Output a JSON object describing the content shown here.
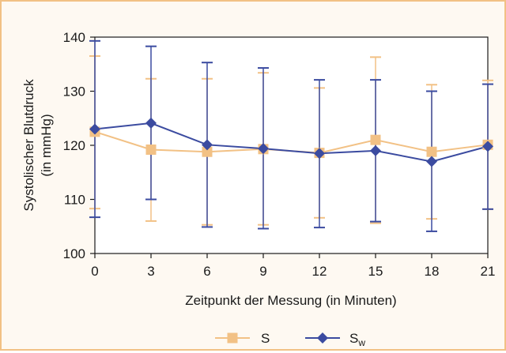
{
  "chart_data": {
    "type": "line",
    "title": "",
    "xlabel": "Zeitpunkt der Messung (in Minuten)",
    "ylabel_lines": [
      "Systolischer Blutdruck",
      "(in mmHg)"
    ],
    "x": [
      0,
      3,
      6,
      9,
      12,
      15,
      18,
      21
    ],
    "x_tick_labels": [
      "0",
      "3",
      "6",
      "9",
      "12",
      "15",
      "18",
      "21"
    ],
    "y_tick_labels": [
      "100",
      "110",
      "120",
      "130",
      "140"
    ],
    "y_ticks": [
      100,
      110,
      120,
      130,
      140
    ],
    "xlim": [
      0,
      21
    ],
    "ylim": [
      100,
      140
    ],
    "grid": false,
    "legend_position": "bottom",
    "series": [
      {
        "name": "S",
        "color": "#f2c185",
        "marker": "square",
        "values": [
          122.5,
          119.2,
          118.8,
          119.3,
          118.6,
          121.0,
          118.8,
          120.1
        ],
        "err_low": [
          108.3,
          106.0,
          105.3,
          105.3,
          106.6,
          105.6,
          106.4,
          108.2
        ],
        "err_high": [
          136.5,
          132.3,
          132.3,
          133.4,
          130.6,
          136.3,
          131.2,
          132.0
        ]
      },
      {
        "name": "S",
        "name_subscript": "w",
        "color": "#3b4ba0",
        "marker": "diamond",
        "values": [
          123.0,
          124.1,
          120.1,
          119.4,
          118.5,
          119.0,
          117.0,
          119.8
        ],
        "err_low": [
          106.7,
          110.0,
          104.9,
          104.6,
          104.8,
          105.9,
          104.1,
          108.2
        ],
        "err_high": [
          139.3,
          138.3,
          135.3,
          134.3,
          132.1,
          132.1,
          130.0,
          131.3
        ]
      }
    ]
  }
}
